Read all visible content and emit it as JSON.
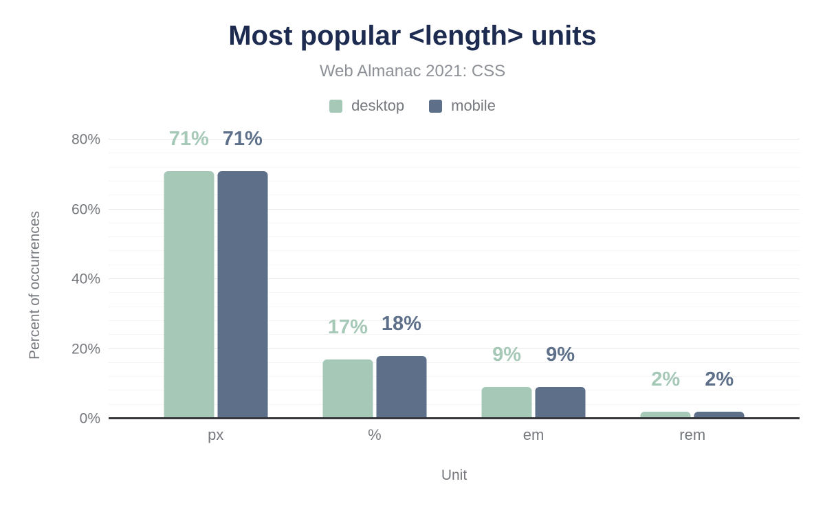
{
  "header": {
    "title": "Most popular <length> units",
    "subtitle": "Web Almanac 2021: CSS"
  },
  "legend": {
    "items": [
      {
        "label": "desktop",
        "color": "#a5c8b7"
      },
      {
        "label": "mobile",
        "color": "#5e7089"
      }
    ]
  },
  "chart_data": {
    "type": "bar",
    "categories": [
      "px",
      "%",
      "em",
      "rem"
    ],
    "series": [
      {
        "name": "desktop",
        "color": "#a5c8b7",
        "values": [
          71,
          17,
          9,
          2
        ],
        "value_labels": [
          "71%",
          "17%",
          "9%",
          "2%"
        ]
      },
      {
        "name": "mobile",
        "color": "#5e7089",
        "values": [
          71,
          18,
          9,
          2
        ],
        "value_labels": [
          "71%",
          "18%",
          "9%",
          "2%"
        ]
      }
    ],
    "title": "Most popular <length> units",
    "subtitle": "Web Almanac 2021: CSS",
    "xlabel": "Unit",
    "ylabel": "Percent of occurrences",
    "ylim": [
      0,
      87.3
    ],
    "yticks": [
      {
        "v": 0,
        "label": "0%"
      },
      {
        "v": 20,
        "label": "20%"
      },
      {
        "v": 40,
        "label": "40%"
      },
      {
        "v": 60,
        "label": "60%"
      },
      {
        "v": 80,
        "label": "80%"
      }
    ],
    "grid": {
      "on": true,
      "minor_step": 4,
      "major_step": 20,
      "max": 80
    },
    "legend_position": "top"
  },
  "colors": {
    "title": "#1c2b4f",
    "subtitle": "#8d9197",
    "axis_text": "#75787d",
    "grid_minor": "#f4f4f4",
    "grid_major": "#e9e9e9",
    "axis_line": "#35373a",
    "background": "#ffffff"
  }
}
